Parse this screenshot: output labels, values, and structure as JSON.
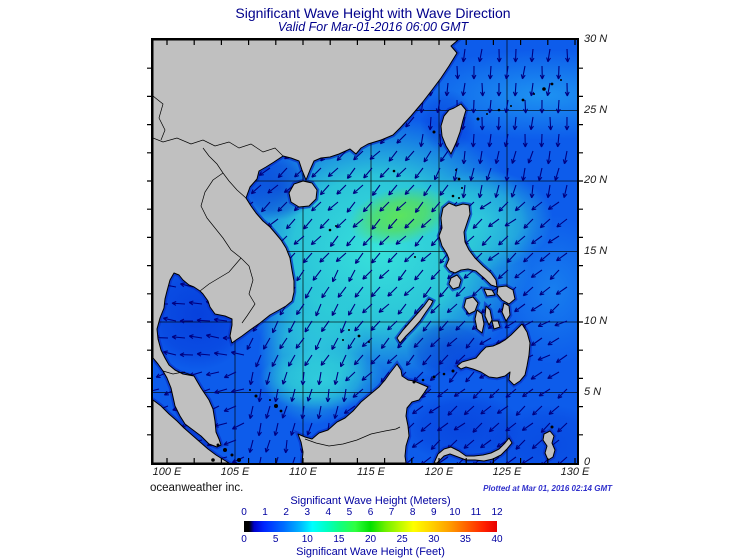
{
  "header": {
    "title": "Significant Wave Height with Wave Direction",
    "subtitle": "Valid For Mar-01-2016 06:00 GMT"
  },
  "map_axes": {
    "lat_labels": [
      "30 N",
      "25 N",
      "20 N",
      "15 N",
      "10 N",
      "5 N",
      "0"
    ],
    "lon_labels": [
      "100 E",
      "105 E",
      "110 E",
      "115 E",
      "120 E",
      "125 E",
      "130 E"
    ]
  },
  "footer": {
    "credit": "oceanweather inc.",
    "plotted_note": "Plotted at Mar 01, 2016 02:14 GMT"
  },
  "colorbar": {
    "title_meters": "Significant Wave Height (Meters)",
    "title_feet": "Significant Wave Height (Feet)",
    "meters_ticks": [
      "0",
      "1",
      "2",
      "3",
      "4",
      "5",
      "6",
      "7",
      "8",
      "9",
      "10",
      "11",
      "12"
    ],
    "feet_ticks": [
      "0",
      "5",
      "10",
      "15",
      "20",
      "25",
      "30",
      "35",
      "40"
    ],
    "gradient_stops": [
      [
        0,
        "#000000"
      ],
      [
        2,
        "#000000"
      ],
      [
        4,
        "#0000cc"
      ],
      [
        8,
        "#0026ff"
      ],
      [
        16,
        "#0070ff"
      ],
      [
        22,
        "#00b4ff"
      ],
      [
        27,
        "#00ffff"
      ],
      [
        33,
        "#00ffc0"
      ],
      [
        38,
        "#10ff80"
      ],
      [
        44,
        "#30ff40"
      ],
      [
        50,
        "#00e000"
      ],
      [
        56,
        "#70f000"
      ],
      [
        62,
        "#c0fa00"
      ],
      [
        67,
        "#ffff00"
      ],
      [
        74,
        "#ffd200"
      ],
      [
        81,
        "#ffa000"
      ],
      [
        88,
        "#ff6000"
      ],
      [
        95,
        "#ff2000"
      ],
      [
        100,
        "#e80000"
      ]
    ]
  },
  "map_colors": {
    "land": "#c0c0c0",
    "ocean_base": "#0d5ceb",
    "arrow": "#000080",
    "high_wave_patch": "#58e05a",
    "coast_fringe": "#0a30c8"
  }
}
